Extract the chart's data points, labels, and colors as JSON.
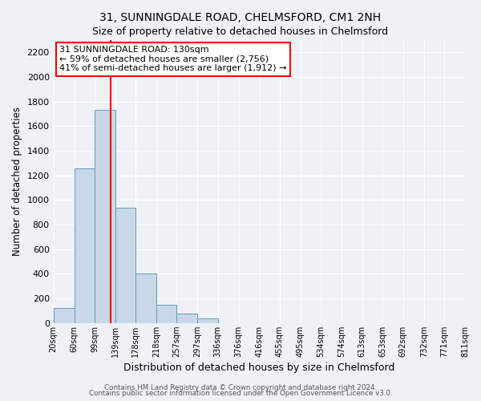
{
  "title1": "31, SUNNINGDALE ROAD, CHELMSFORD, CM1 2NH",
  "title2": "Size of property relative to detached houses in Chelmsford",
  "xlabel": "Distribution of detached houses by size in Chelmsford",
  "ylabel": "Number of detached properties",
  "footer1": "Contains HM Land Registry data © Crown copyright and database right 2024.",
  "footer2": "Contains public sector information licensed under the Open Government Licence v3.0.",
  "bin_edges": [
    20,
    60,
    99,
    139,
    178,
    218,
    257,
    297,
    336,
    376,
    416,
    455,
    495,
    534,
    574,
    613,
    653,
    692,
    732,
    771,
    811
  ],
  "bin_labels": [
    "20sqm",
    "60sqm",
    "99sqm",
    "139sqm",
    "178sqm",
    "218sqm",
    "257sqm",
    "297sqm",
    "336sqm",
    "376sqm",
    "416sqm",
    "455sqm",
    "495sqm",
    "534sqm",
    "574sqm",
    "613sqm",
    "653sqm",
    "692sqm",
    "732sqm",
    "771sqm",
    "811sqm"
  ],
  "bar_heights": [
    120,
    1260,
    1730,
    940,
    400,
    150,
    75,
    35,
    0,
    0,
    0,
    0,
    0,
    0,
    0,
    0,
    0,
    0,
    0,
    0
  ],
  "bar_color": "#c8d8e8",
  "bar_edge_color": "#6699bb",
  "vline_x": 130,
  "vline_color": "red",
  "ylim": [
    0,
    2300
  ],
  "yticks": [
    0,
    200,
    400,
    600,
    800,
    1000,
    1200,
    1400,
    1600,
    1800,
    2000,
    2200
  ],
  "annotation_box_text": "31 SUNNINGDALE ROAD: 130sqm\n← 59% of detached houses are smaller (2,756)\n41% of semi-detached houses are larger (1,912) →",
  "bg_color": "#eef2f7",
  "grid_color": "#ffffff"
}
